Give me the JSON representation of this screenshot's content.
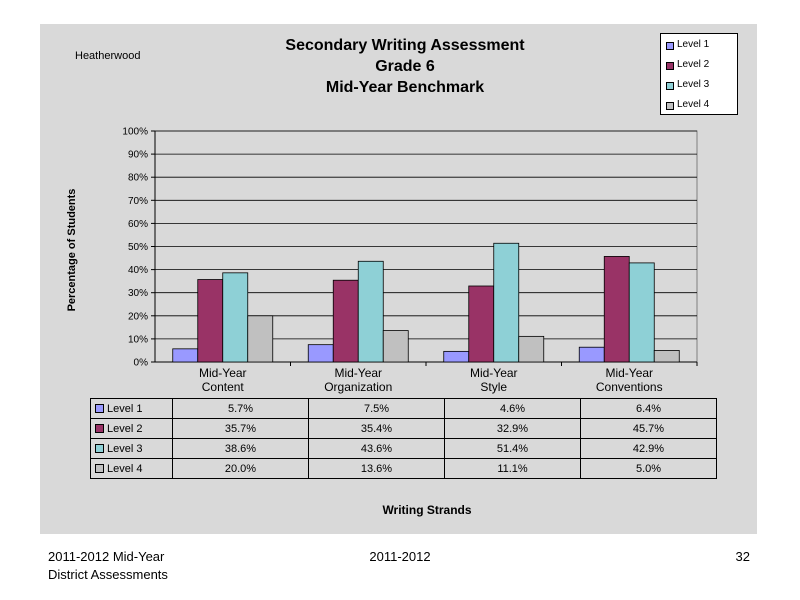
{
  "school": "Heatherwood",
  "title_lines": [
    "Secondary Writing Assessment",
    "Grade 6",
    "Mid-Year Benchmark"
  ],
  "colors": {
    "level1": "#9999ff",
    "level2": "#993366",
    "level3": "#8ed0d6",
    "level4": "#c0c0c0"
  },
  "chart_data": {
    "type": "bar",
    "title": "Secondary Writing Assessment Grade 6 Mid-Year Benchmark",
    "categories": [
      [
        "Mid-Year",
        "Content"
      ],
      [
        "Mid-Year",
        "Organization"
      ],
      [
        "Mid-Year",
        "Style"
      ],
      [
        "Mid-Year",
        "Conventions"
      ]
    ],
    "series": [
      {
        "name": "Level 1",
        "values": [
          5.7,
          7.5,
          4.6,
          6.4
        ],
        "labels": [
          "5.7%",
          "7.5%",
          "4.6%",
          "6.4%"
        ]
      },
      {
        "name": "Level 2",
        "values": [
          35.7,
          35.4,
          32.9,
          45.7
        ],
        "labels": [
          "35.7%",
          "35.4%",
          "32.9%",
          "45.7%"
        ]
      },
      {
        "name": "Level 3",
        "values": [
          38.6,
          43.6,
          51.4,
          42.9
        ],
        "labels": [
          "38.6%",
          "43.6%",
          "51.4%",
          "42.9%"
        ]
      },
      {
        "name": "Level 4",
        "values": [
          20.0,
          13.6,
          11.1,
          5.0
        ],
        "labels": [
          "20.0%",
          "13.6%",
          "11.1%",
          "5.0%"
        ]
      }
    ],
    "ylabel": "Percentage of Students",
    "xlabel": "Writing Strands",
    "ylim": [
      0,
      100
    ],
    "yticks": [
      "0%",
      "10%",
      "20%",
      "30%",
      "40%",
      "50%",
      "60%",
      "70%",
      "80%",
      "90%",
      "100%"
    ],
    "grid": true,
    "legend": "top-right"
  },
  "footer": {
    "left_line1": "2011-2012  Mid-Year",
    "left_line2": "District Assessments",
    "center": "2011-2012",
    "page": "32"
  }
}
